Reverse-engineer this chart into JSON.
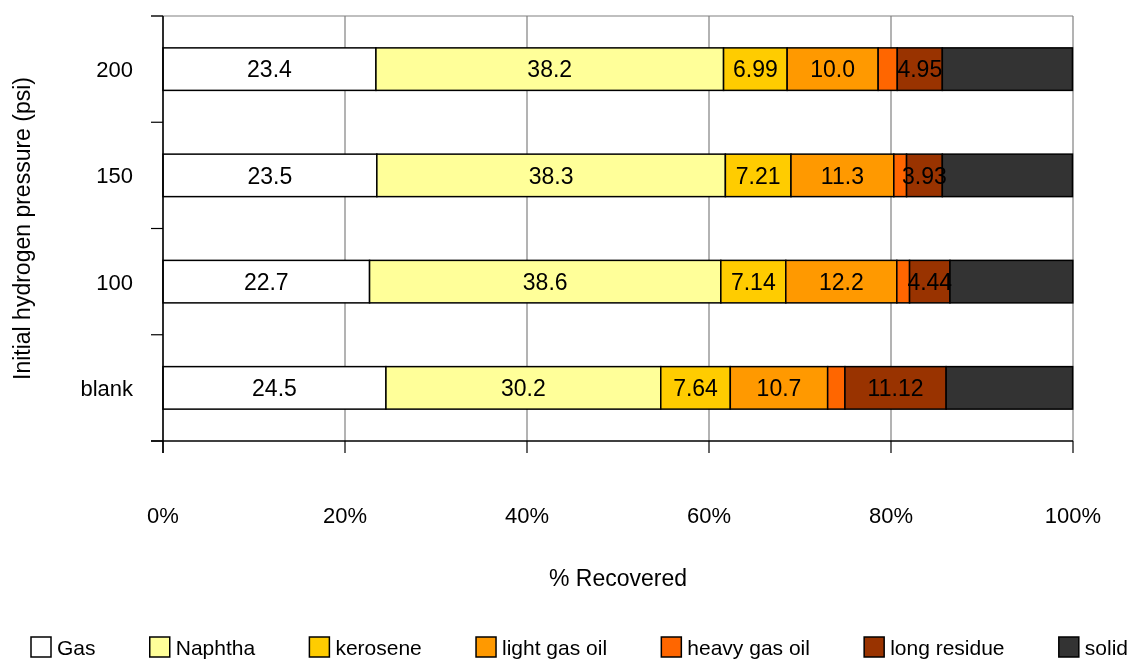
{
  "chart_data": {
    "type": "bar",
    "orientation": "horizontal",
    "stacked": true,
    "categories": [
      "200",
      "150",
      "100",
      "blank"
    ],
    "series": [
      {
        "name": "Gas",
        "color": "#ffffff",
        "values": [
          23.4,
          23.5,
          22.7,
          24.5
        ],
        "value_labels": [
          "23.4",
          "23.5",
          "22.7",
          "24.5"
        ]
      },
      {
        "name": "Naphtha",
        "color": "#ffff99",
        "values": [
          38.2,
          38.3,
          38.6,
          30.2
        ],
        "value_labels": [
          "38.2",
          "38.3",
          "38.6",
          "30.2"
        ]
      },
      {
        "name": "kerosene",
        "color": "#ffcc00",
        "values": [
          6.99,
          7.21,
          7.14,
          7.64
        ],
        "value_labels": [
          "6.99",
          "7.21",
          "7.14",
          "7.64"
        ]
      },
      {
        "name": "light gas oil",
        "color": "#ff9900",
        "values": [
          10.0,
          11.3,
          12.2,
          10.7
        ],
        "value_labels": [
          "10.0",
          "11.3",
          "12.2",
          "10.7"
        ]
      },
      {
        "name": "heavy gas oil",
        "color": "#ff6600",
        "values": [
          2.1,
          1.4,
          1.4,
          1.9
        ]
      },
      {
        "name": "long residue",
        "color": "#993300",
        "values": [
          4.95,
          3.93,
          4.44,
          11.12
        ],
        "value_labels": [
          "4.95",
          "3.93",
          "4.44",
          "11.12"
        ]
      },
      {
        "name": "solid",
        "color": "#333333",
        "values": [
          14.3,
          14.3,
          13.5,
          13.9
        ]
      }
    ],
    "xlim": [
      0,
      100
    ],
    "xticks": [
      {
        "value": 0,
        "label": "0%"
      },
      {
        "value": 20,
        "label": "20%"
      },
      {
        "value": 40,
        "label": "40%"
      },
      {
        "value": 60,
        "label": "60%"
      },
      {
        "value": 80,
        "label": "80%"
      },
      {
        "value": 100,
        "label": "100%"
      }
    ],
    "xlabel": "% Recovered",
    "ylabel": "Initial hydrogen pressure (psi)",
    "grid": "x",
    "legend": "bottom"
  }
}
